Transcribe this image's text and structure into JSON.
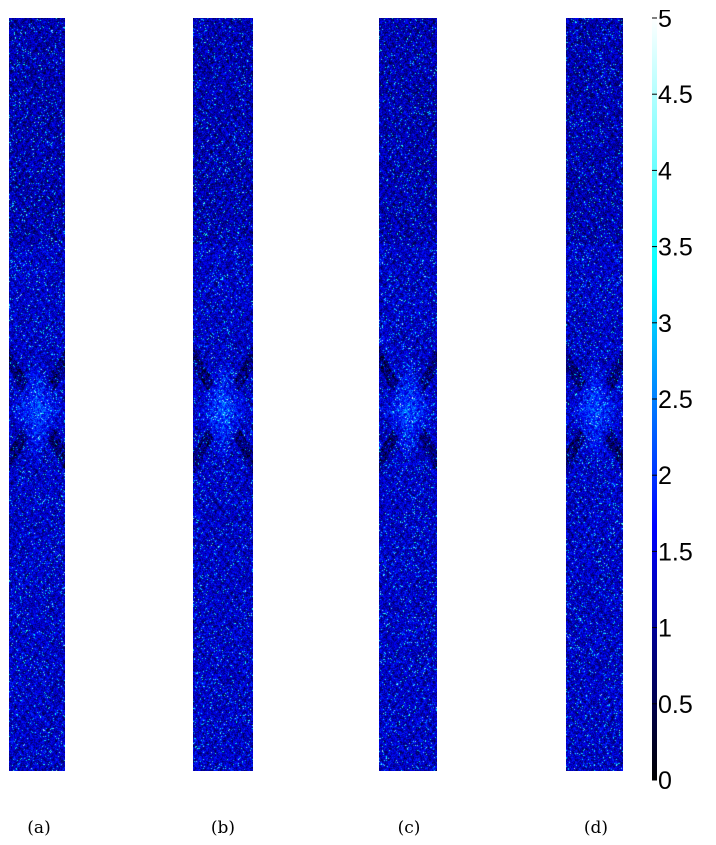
{
  "chart_data": {
    "type": "heatmap",
    "panels": [
      {
        "label": "(a)"
      },
      {
        "label": "(b)"
      },
      {
        "label": "(c)"
      },
      {
        "label": "(d)"
      }
    ],
    "colorbar": {
      "min": 0,
      "max": 5,
      "ticks": [
        "0",
        "0.5",
        "1",
        "1.5",
        "2",
        "2.5",
        "3",
        "3.5",
        "4",
        "4.5",
        "5"
      ],
      "colormap": [
        "#000000",
        "#0000ff",
        "#00ffff",
        "#ffffff"
      ]
    },
    "colors": {
      "field_base": "#1a2fa8",
      "speckle": "#9ab4ff"
    }
  }
}
